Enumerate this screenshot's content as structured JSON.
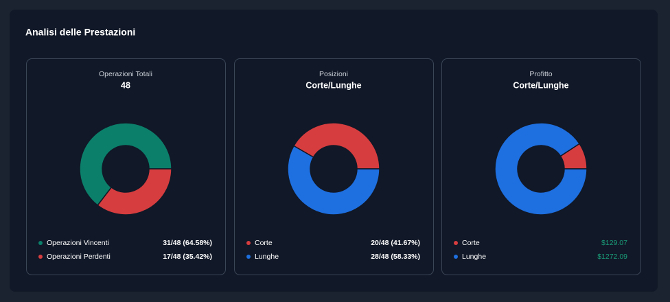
{
  "title": "Analisi delle Prestazioni",
  "chart_data": [
    {
      "type": "donut",
      "heading": "Operazioni Totali",
      "title": "48",
      "categories": [
        "Operazioni Vincenti",
        "Operazioni Perdenti"
      ],
      "values": [
        31,
        17
      ],
      "value_labels": [
        "31/48 (64.58%)",
        "17/48 (35.42%)"
      ],
      "colors": [
        "#0b7f6a",
        "#d63d3f"
      ],
      "value_label_color": "#ffffff"
    },
    {
      "type": "donut",
      "heading": "Posizioni",
      "title": "Corte/Lunghe",
      "categories": [
        "Corte",
        "Lunghe"
      ],
      "values": [
        20,
        28
      ],
      "value_labels": [
        "20/48 (41.67%)",
        "28/48 (58.33%)"
      ],
      "colors": [
        "#d63d3f",
        "#1e6fe0"
      ],
      "value_label_color": "#ffffff"
    },
    {
      "type": "donut",
      "heading": "Profitto",
      "title": "Corte/Lunghe",
      "categories": [
        "Corte",
        "Lunghe"
      ],
      "values": [
        129.07,
        1272.09
      ],
      "value_labels": [
        "$129.07",
        "$1272.09"
      ],
      "colors": [
        "#d63d3f",
        "#1e6fe0"
      ],
      "value_label_color": "#1a9e7a"
    }
  ]
}
